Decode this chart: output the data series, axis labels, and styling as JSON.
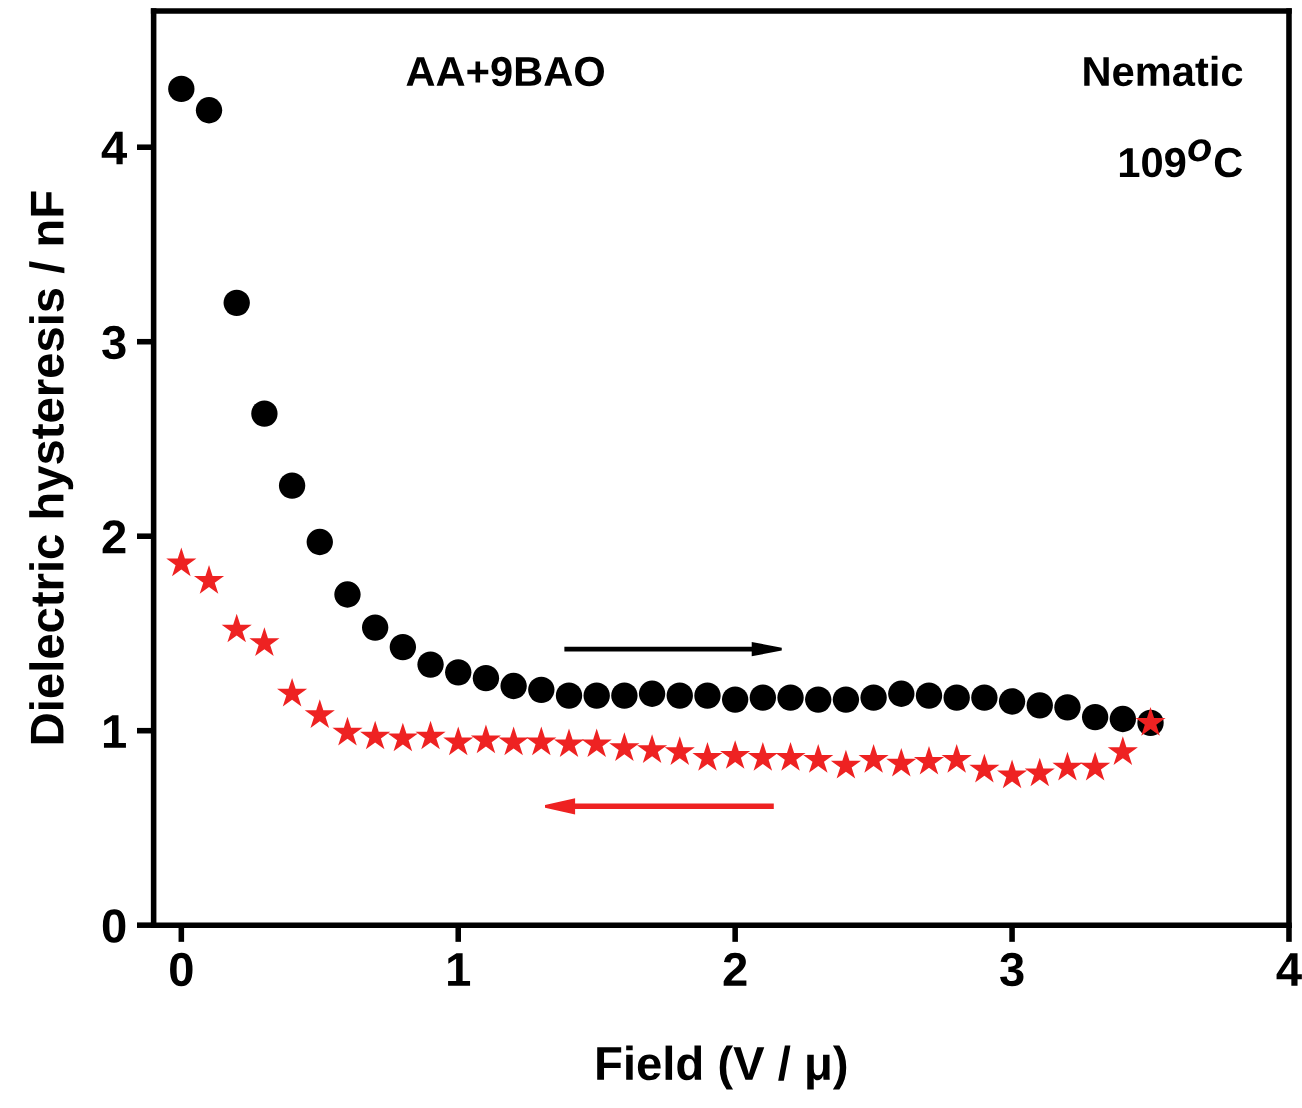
{
  "chart_data": {
    "type": "scatter",
    "xlabel": "Field (V / μ)",
    "ylabel": "Dielectric hysteresis / nF",
    "annotations": [
      "AA+9BAO",
      "Nematic",
      "109$^{O}$C"
    ],
    "x": [
      0,
      0.1,
      0.2,
      0.3,
      0.4,
      0.5,
      0.6,
      0.7,
      0.8,
      0.9,
      1.0,
      1.1,
      1.2,
      1.3,
      1.4,
      1.5,
      1.6,
      1.7,
      1.8,
      1.9,
      2.0,
      2.1,
      2.2,
      2.3,
      2.4,
      2.5,
      2.6,
      2.7,
      2.8,
      2.9,
      3.0,
      3.1,
      3.2,
      3.3,
      3.4,
      3.5
    ],
    "series": [
      {
        "color": "#000000",
        "marker": "circle",
        "values": [
          4.3,
          4.19,
          3.2,
          2.63,
          2.26,
          1.97,
          1.7,
          1.53,
          1.43,
          1.34,
          1.3,
          1.27,
          1.23,
          1.21,
          1.18,
          1.18,
          1.18,
          1.19,
          1.18,
          1.18,
          1.16,
          1.17,
          1.17,
          1.16,
          1.16,
          1.17,
          1.19,
          1.18,
          1.17,
          1.17,
          1.15,
          1.13,
          1.12,
          1.07,
          1.06,
          1.04
        ]
      },
      {
        "color": "#ee2222",
        "marker": "star",
        "values": [
          1.86,
          1.77,
          1.52,
          1.45,
          1.19,
          1.08,
          0.99,
          0.97,
          0.96,
          0.97,
          0.94,
          0.95,
          0.94,
          0.94,
          0.93,
          0.93,
          0.91,
          0.9,
          0.89,
          0.86,
          0.87,
          0.86,
          0.86,
          0.85,
          0.82,
          0.85,
          0.83,
          0.84,
          0.85,
          0.8,
          0.77,
          0.78,
          0.81,
          0.81,
          0.89,
          1.04
        ]
      }
    ],
    "xlim": [
      -0.1,
      4
    ],
    "ylim": [
      0,
      4.7
    ],
    "xticks": [
      0,
      1,
      2,
      3,
      4
    ],
    "yticks": [
      0,
      1,
      2,
      3,
      4
    ],
    "grid": false,
    "legend": false
  }
}
